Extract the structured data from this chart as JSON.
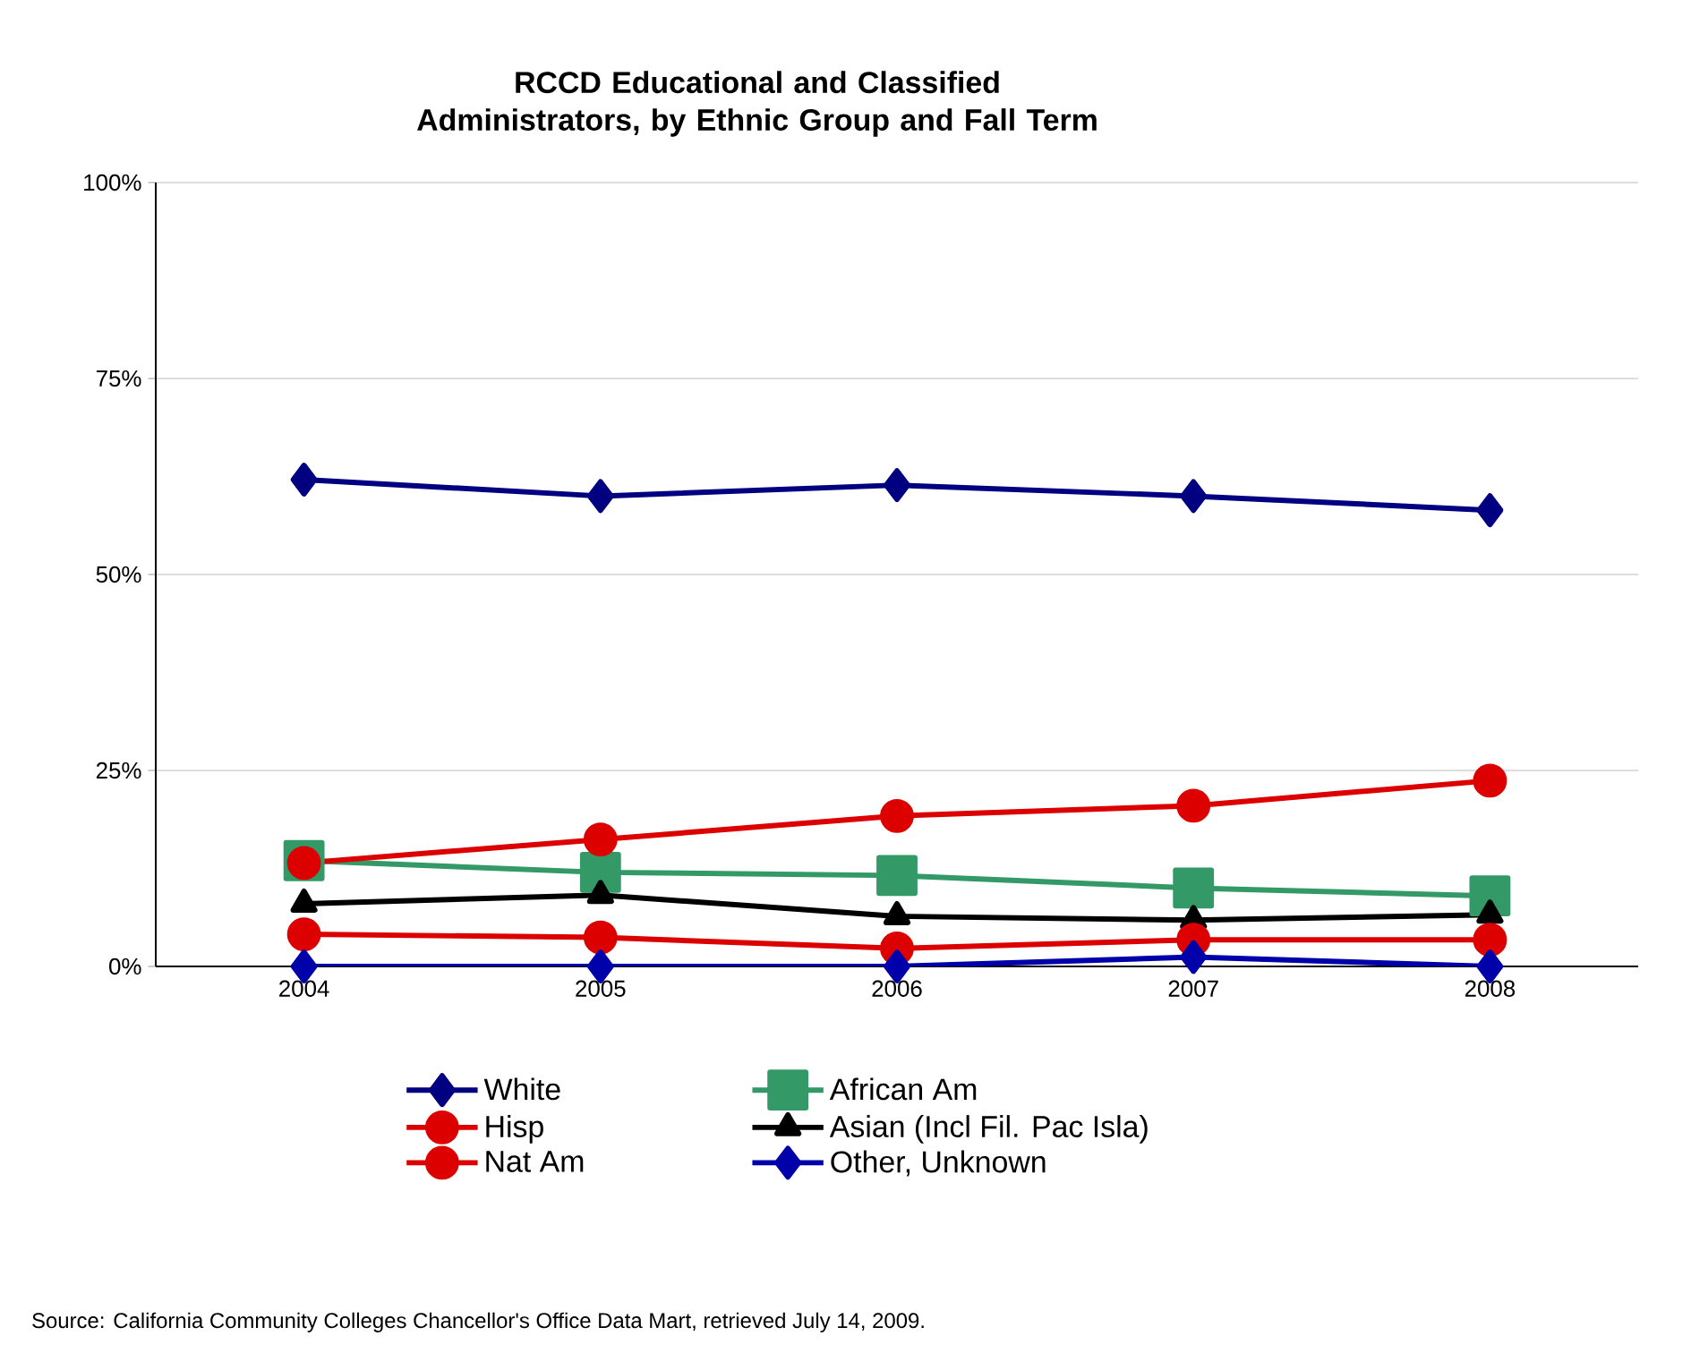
{
  "chart_data": {
    "type": "line",
    "title": "RCCD Educational and Classified Administrators, by Ethnic Group and Fall Term",
    "categories": [
      "2004",
      "2005",
      "2006",
      "2007",
      "2008"
    ],
    "series": [
      {
        "name": "White",
        "color": "#000080",
        "marker": "diamond",
        "values": [
          62.1,
          60.0,
          61.4,
          60.0,
          58.2
        ]
      },
      {
        "name": "African Am",
        "color": "#339966",
        "marker": "square",
        "values": [
          13.5,
          12.0,
          11.6,
          10.0,
          9.0
        ]
      },
      {
        "name": "Hisp",
        "color": "#dd0000",
        "marker": "circle",
        "values": [
          13.2,
          16.2,
          19.2,
          20.5,
          23.7
        ]
      },
      {
        "name": "Asian (Incl Fil. Pac Isla)",
        "color": "#000000",
        "marker": "triangle",
        "values": [
          8.0,
          9.1,
          6.4,
          5.9,
          6.6
        ]
      },
      {
        "name": "Nat Am",
        "color": "#dd0000",
        "marker": "circle",
        "values": [
          4.1,
          3.7,
          2.3,
          3.4,
          3.4
        ]
      },
      {
        "name": "Other, Unknown",
        "color": "#0000aa",
        "marker": "diamond",
        "values": [
          0.0,
          0.0,
          0.0,
          1.2,
          0.0
        ]
      }
    ],
    "ylim": [
      0,
      100
    ],
    "yticks": [
      {
        "value": 0,
        "label": "0%"
      },
      {
        "value": 25,
        "label": "25%"
      },
      {
        "value": 50,
        "label": "50%"
      },
      {
        "value": 75,
        "label": "75%"
      },
      {
        "value": 100,
        "label": "100%"
      }
    ],
    "grid": "y",
    "legend": "bottom",
    "line_style": "solid",
    "annotations": [
      "Source: California Community Colleges Chancellor's Office Data Mart, retrieved July 14, 2009."
    ]
  }
}
